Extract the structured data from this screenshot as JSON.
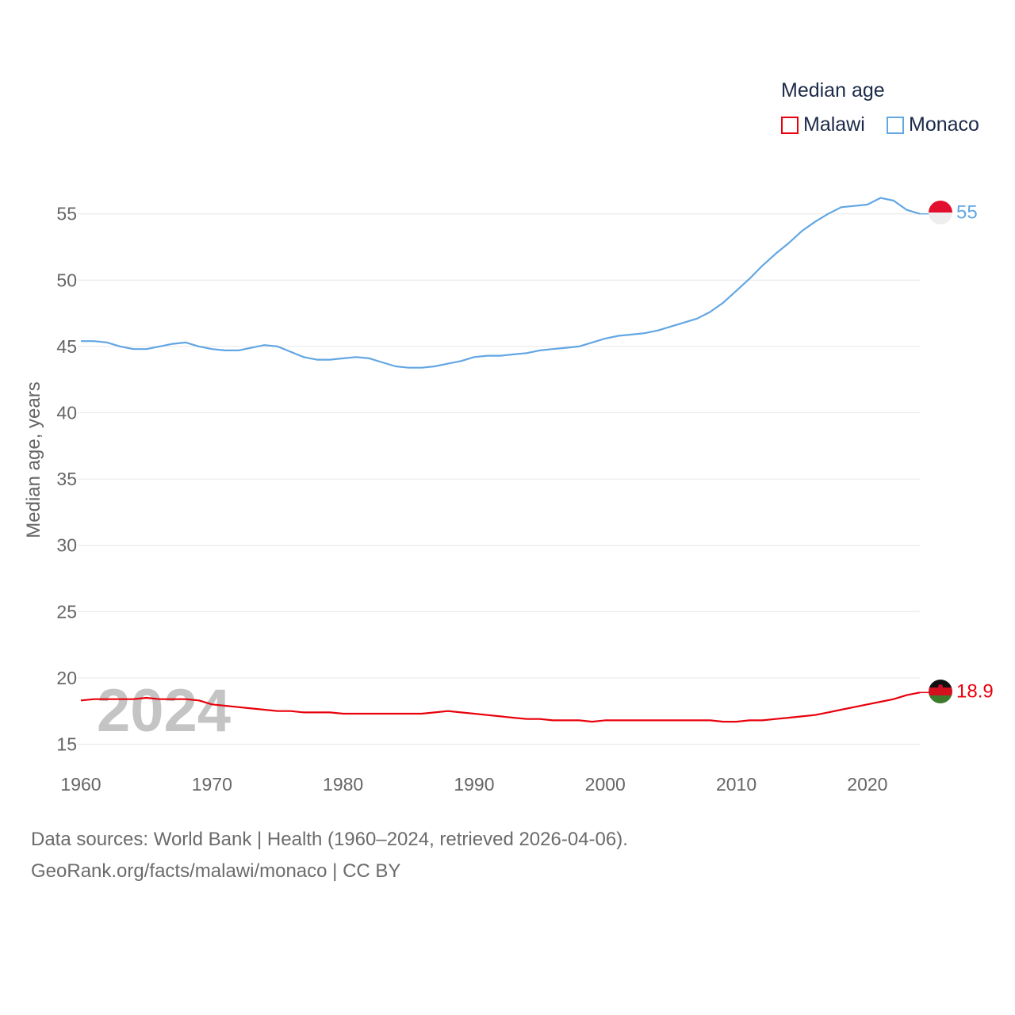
{
  "legend": {
    "title": "Median age",
    "items": [
      {
        "label": "Malawi",
        "color": "#e8000b"
      },
      {
        "label": "Monaco",
        "color": "#62a6e3"
      }
    ]
  },
  "source": {
    "line1": "Data sources: World Bank | Health (1960–2024, retrieved 2026-04-06).",
    "line2": "GeoRank.org/facts/malawi/monaco | CC BY"
  },
  "chart_data": {
    "type": "line",
    "title": "Median age",
    "xlabel": "",
    "ylabel": "Median age, years",
    "xlim": [
      1960,
      2024
    ],
    "ylim": [
      15,
      57
    ],
    "x_ticks": [
      1960,
      1970,
      1980,
      1990,
      2000,
      2010,
      2020
    ],
    "y_ticks": [
      15,
      20,
      25,
      30,
      35,
      40,
      45,
      50,
      55
    ],
    "grid": true,
    "current_year": "2024",
    "x": [
      1960,
      1961,
      1962,
      1963,
      1964,
      1965,
      1966,
      1967,
      1968,
      1969,
      1970,
      1971,
      1972,
      1973,
      1974,
      1975,
      1976,
      1977,
      1978,
      1979,
      1980,
      1981,
      1982,
      1983,
      1984,
      1985,
      1986,
      1987,
      1988,
      1989,
      1990,
      1991,
      1992,
      1993,
      1994,
      1995,
      1996,
      1997,
      1998,
      1999,
      2000,
      2001,
      2002,
      2003,
      2004,
      2005,
      2006,
      2007,
      2008,
      2009,
      2010,
      2011,
      2012,
      2013,
      2014,
      2015,
      2016,
      2017,
      2018,
      2019,
      2020,
      2021,
      2022,
      2023,
      2024
    ],
    "series": [
      {
        "name": "Monaco",
        "color": "#62a6e3",
        "end_label": "55",
        "values": [
          45.4,
          45.4,
          45.3,
          45.0,
          44.8,
          44.8,
          45.0,
          45.2,
          45.3,
          45.0,
          44.8,
          44.7,
          44.7,
          44.9,
          45.1,
          45.0,
          44.6,
          44.2,
          44.0,
          44.0,
          44.1,
          44.2,
          44.1,
          43.8,
          43.5,
          43.4,
          43.4,
          43.5,
          43.7,
          43.9,
          44.2,
          44.3,
          44.3,
          44.4,
          44.5,
          44.7,
          44.8,
          44.9,
          45.0,
          45.3,
          45.6,
          45.8,
          45.9,
          46.0,
          46.2,
          46.5,
          46.8,
          47.1,
          47.6,
          48.3,
          49.2,
          50.1,
          51.1,
          52.0,
          52.8,
          53.7,
          54.4,
          55.0,
          55.5,
          55.6,
          55.7,
          56.2,
          56.0,
          55.3,
          55.0
        ]
      },
      {
        "name": "Malawi",
        "color": "#e8000b",
        "end_label": "18.9",
        "values": [
          18.3,
          18.4,
          18.4,
          18.4,
          18.4,
          18.5,
          18.4,
          18.4,
          18.4,
          18.3,
          18.0,
          17.9,
          17.8,
          17.7,
          17.6,
          17.5,
          17.5,
          17.4,
          17.4,
          17.4,
          17.3,
          17.3,
          17.3,
          17.3,
          17.3,
          17.3,
          17.3,
          17.4,
          17.5,
          17.4,
          17.3,
          17.2,
          17.1,
          17.0,
          16.9,
          16.9,
          16.8,
          16.8,
          16.8,
          16.7,
          16.8,
          16.8,
          16.8,
          16.8,
          16.8,
          16.8,
          16.8,
          16.8,
          16.8,
          16.7,
          16.7,
          16.8,
          16.8,
          16.9,
          17.0,
          17.1,
          17.2,
          17.4,
          17.6,
          17.8,
          18.0,
          18.2,
          18.4,
          18.7,
          18.9
        ]
      }
    ]
  }
}
